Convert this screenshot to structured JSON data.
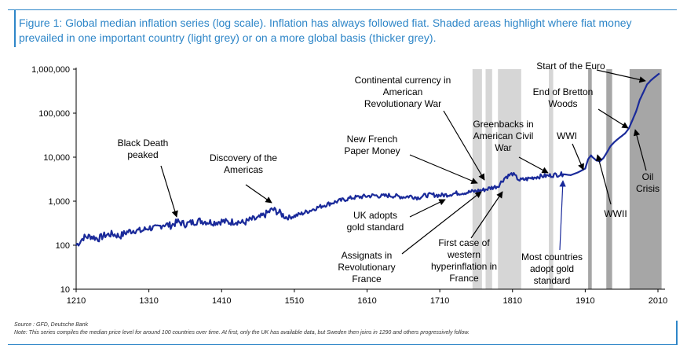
{
  "title": "Figure 1: Global median inflation series (log scale). Inflation has always followed fiat. Shaded areas highlight where fiat money prevailed in one important country (light grey) or on a more global basis (thicker grey).",
  "source": "Source : GFD, Deutsche Bank",
  "note": "Note: This series compiles the median price level for around 100 countries over time. At first, only the UK has available data, but Sweden then joins in 1290 and others progressively follow.",
  "chart_data": {
    "type": "line",
    "y_scale": "log",
    "ylim": [
      10,
      1000000
    ],
    "xlim": [
      1210,
      2015
    ],
    "x_ticks": [
      1210,
      1310,
      1410,
      1510,
      1610,
      1710,
      1810,
      1910,
      2010
    ],
    "x_tick_labels": [
      "1210",
      "1310",
      "1410",
      "1510",
      "1610",
      "1710",
      "1810",
      "1910",
      "2010"
    ],
    "y_ticks": [
      10,
      100,
      1000,
      10000,
      100000,
      1000000
    ],
    "y_tick_labels": [
      "10",
      "100",
      "1,000",
      "10,000",
      "100,000",
      "1,000,000"
    ],
    "line_color": "#1a2a9a",
    "shade_light_color": "#d6d6d6",
    "shade_dark_color": "#a6a6a6",
    "shaded_light": [
      [
        1755,
        1768
      ],
      [
        1773,
        1782
      ],
      [
        1790,
        1822
      ],
      [
        1860,
        1866
      ]
    ],
    "shaded_dark": [
      [
        1914,
        1919
      ],
      [
        1939,
        1947
      ],
      [
        1971,
        2015
      ]
    ],
    "series": [
      {
        "x": [
          1210,
          1215,
          1220,
          1230,
          1240,
          1250,
          1260,
          1270,
          1280,
          1290,
          1300,
          1310,
          1320,
          1330,
          1340,
          1350,
          1360,
          1370,
          1380,
          1390,
          1400,
          1410,
          1420,
          1430,
          1440,
          1450,
          1460,
          1470,
          1480,
          1490,
          1500,
          1510,
          1520,
          1530,
          1540,
          1550,
          1560,
          1570,
          1580,
          1590,
          1600,
          1610,
          1620,
          1630,
          1640,
          1650,
          1660,
          1670,
          1680,
          1690,
          1700,
          1710,
          1720,
          1730,
          1740,
          1750,
          1760,
          1770,
          1780,
          1790,
          1800,
          1810,
          1815,
          1820,
          1830,
          1840,
          1850,
          1860,
          1870,
          1880,
          1890,
          1900,
          1910,
          1914,
          1918,
          1920,
          1925,
          1930,
          1935,
          1940,
          1945,
          1950,
          1955,
          1960,
          1965,
          1970,
          1975,
          1980,
          1985,
          1990,
          1995,
          2000,
          2005,
          2012
        ],
        "y": [
          100,
          120,
          150,
          160,
          140,
          170,
          180,
          160,
          200,
          220,
          210,
          250,
          240,
          300,
          280,
          340,
          300,
          330,
          360,
          340,
          330,
          350,
          330,
          350,
          320,
          380,
          400,
          500,
          650,
          540,
          420,
          460,
          520,
          600,
          700,
          800,
          900,
          1000,
          1100,
          1200,
          1250,
          1300,
          1350,
          1300,
          1350,
          1300,
          1250,
          1300,
          1200,
          1350,
          1400,
          1350,
          1400,
          1500,
          1550,
          1600,
          1700,
          1800,
          2000,
          2200,
          3500,
          4200,
          3500,
          3000,
          3200,
          3500,
          3700,
          3800,
          4000,
          4100,
          3900,
          4500,
          5500,
          9000,
          11000,
          10000,
          8500,
          8000,
          9500,
          13000,
          18000,
          22000,
          26000,
          30000,
          35000,
          45000,
          70000,
          110000,
          200000,
          300000,
          450000,
          550000,
          650000,
          800000
        ]
      }
    ],
    "annotations": [
      "Black Death peaked",
      "Discovery of the Americas",
      "UK adopts gold standard",
      "Assignats in Revolutionary France",
      "New French Paper Money",
      "Continental currency in American Revolutionary War",
      "First case of western hyperinflation in France",
      "Greenbacks in American Civil War",
      "Most countries adopt gold standard",
      "WWI",
      "End of Bretton Woods",
      "Start of the Euro",
      "Oil Crisis",
      "WWII"
    ]
  },
  "labels": {
    "black_death": [
      "Black Death",
      "peaked"
    ],
    "discovery": [
      "Discovery of the",
      "Americas"
    ],
    "uk_gold": [
      "UK adopts",
      "gold standard"
    ],
    "assignats": [
      "Assignats in",
      "Revolutionary",
      "France"
    ],
    "new_french": [
      "New French",
      "Paper Money"
    ],
    "continental": [
      "Continental currency in",
      "American",
      "Revolutionary War"
    ],
    "first_hyper": [
      "First case of",
      "western",
      "hyperinflation in",
      "France"
    ],
    "greenbacks": [
      "Greenbacks in",
      "American Civil",
      "War"
    ],
    "most_countries": [
      "Most countries",
      "adopt gold",
      "standard"
    ],
    "wwi": [
      "WWI"
    ],
    "bretton": [
      "End of Bretton",
      "Woods"
    ],
    "euro": [
      "Start of the Euro"
    ],
    "oil": [
      "Oil",
      "Crisis"
    ],
    "wwii": [
      "WWII"
    ]
  }
}
